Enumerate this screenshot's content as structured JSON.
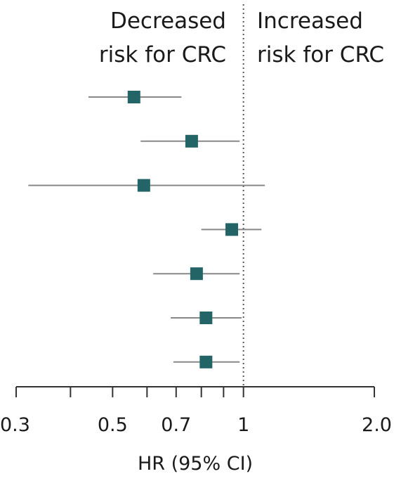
{
  "chart_data": {
    "type": "forest",
    "title": "",
    "xlabel": "HR (95% CI)",
    "ylabel": "",
    "x_scale": "log",
    "xlim": [
      0.3,
      2.0
    ],
    "reference_value": 1,
    "x_ticks": [
      0.3,
      0.4,
      0.5,
      0.6,
      0.7,
      0.8,
      0.9,
      1,
      2.0
    ],
    "x_tick_labels": [
      {
        "value": 0.3,
        "label": "0.3"
      },
      {
        "value": 0.5,
        "label": "0.5"
      },
      {
        "value": 0.7,
        "label": "0.7"
      },
      {
        "value": 1,
        "label": "1"
      },
      {
        "value": 2.0,
        "label": "2.0"
      }
    ],
    "direction_labels": {
      "left": [
        "Decreased",
        "risk for CRC"
      ],
      "right": [
        "Increased",
        "risk for CRC"
      ]
    },
    "estimates": [
      {
        "hr": 0.56,
        "lower": 0.44,
        "upper": 0.72
      },
      {
        "hr": 0.76,
        "lower": 0.58,
        "upper": 0.98
      },
      {
        "hr": 0.59,
        "lower": 0.32,
        "upper": 1.12
      },
      {
        "hr": 0.94,
        "lower": 0.8,
        "upper": 1.1
      },
      {
        "hr": 0.78,
        "lower": 0.62,
        "upper": 0.98
      },
      {
        "hr": 0.82,
        "lower": 0.68,
        "upper": 0.99
      },
      {
        "hr": 0.82,
        "lower": 0.69,
        "upper": 0.98
      }
    ],
    "grid": false,
    "legend": "none",
    "colors": {
      "marker": "#236466",
      "ci_line": "#888888",
      "axis": "#333333",
      "reference": "#555555"
    }
  }
}
